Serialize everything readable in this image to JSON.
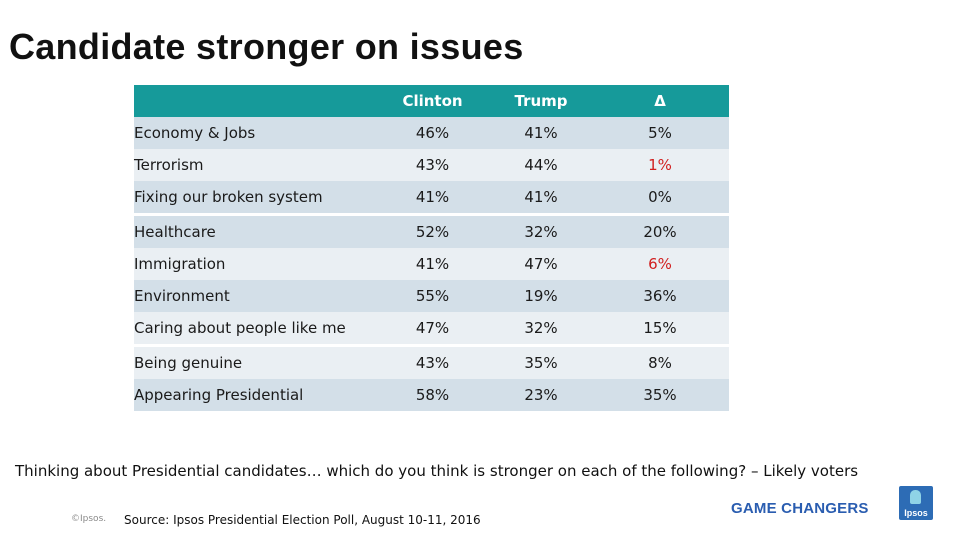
{
  "title": "Candidate stronger on issues",
  "table": {
    "headers": [
      "",
      "Clinton",
      "Trump",
      "Δ"
    ],
    "rows": [
      {
        "issue": "Economy & Jobs",
        "clinton": "46%",
        "trump": "41%",
        "delta": "5%",
        "delta_negative": false
      },
      {
        "issue": "Terrorism",
        "clinton": "43%",
        "trump": "44%",
        "delta": "1%",
        "delta_negative": true
      },
      {
        "issue": "Fixing our broken system",
        "clinton": "41%",
        "trump": "41%",
        "delta": "0%",
        "delta_negative": false
      },
      {
        "issue": "Healthcare",
        "clinton": "52%",
        "trump": "32%",
        "delta": "20%",
        "delta_negative": false
      },
      {
        "issue": "Immigration",
        "clinton": "41%",
        "trump": "47%",
        "delta": "6%",
        "delta_negative": true
      },
      {
        "issue": "Environment",
        "clinton": "55%",
        "trump": "19%",
        "delta": "36%",
        "delta_negative": false
      },
      {
        "issue": "Caring about people like me",
        "clinton": "47%",
        "trump": "32%",
        "delta": "15%",
        "delta_negative": false
      },
      {
        "issue": "Being genuine",
        "clinton": "43%",
        "trump": "35%",
        "delta": "8%",
        "delta_negative": false
      },
      {
        "issue": "Appearing Presidential",
        "clinton": "58%",
        "trump": "23%",
        "delta": "35%",
        "delta_negative": false
      }
    ]
  },
  "question": "Thinking about Presidential candidates… which do you think is stronger on each of the following? – Likely voters",
  "copyright": "©Ipsos.",
  "source": "Source: Ipsos Presidential Election Poll, August 10-11, 2016",
  "tagline": "GAME CHANGERS",
  "logo_text": "Ipsos",
  "colors": {
    "header_bg": "#169a9a",
    "row_dark": "#d3dfe8",
    "row_light": "#eaeff3",
    "negative": "#d11f1f",
    "brand_blue": "#2a5db0"
  }
}
